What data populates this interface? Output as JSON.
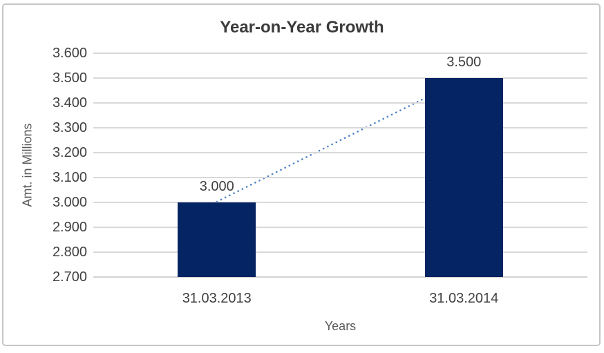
{
  "frame": {
    "background": "#FFFFFF",
    "border_color": "#C6C6C6"
  },
  "chart_data": {
    "type": "bar",
    "title": "Year-on-Year Growth",
    "categories": [
      "31.03.2013",
      "31.03.2014"
    ],
    "values": [
      3000,
      3500
    ],
    "data_labels": [
      "3.000",
      "3.500"
    ],
    "xlabel": "Years",
    "ylabel": "Amt. in Millions",
    "ylim": [
      2700,
      3600
    ],
    "ytick_step": 100,
    "ytick_labels": [
      "3.600",
      "3.500",
      "3.400",
      "3.300",
      "3.200",
      "3.100",
      "3.000",
      "2.900",
      "2.800",
      "2.700"
    ],
    "grid": true,
    "legend_position": "none",
    "bar_color": "#052463",
    "trendline": {
      "type": "linear",
      "style": "dotted",
      "color": "#4F81C7"
    },
    "colors": {
      "gridline": "#D9D9D9",
      "tick_text": "#404040",
      "title_text": "#3B3B3B",
      "axis_title_text": "#595959"
    }
  }
}
